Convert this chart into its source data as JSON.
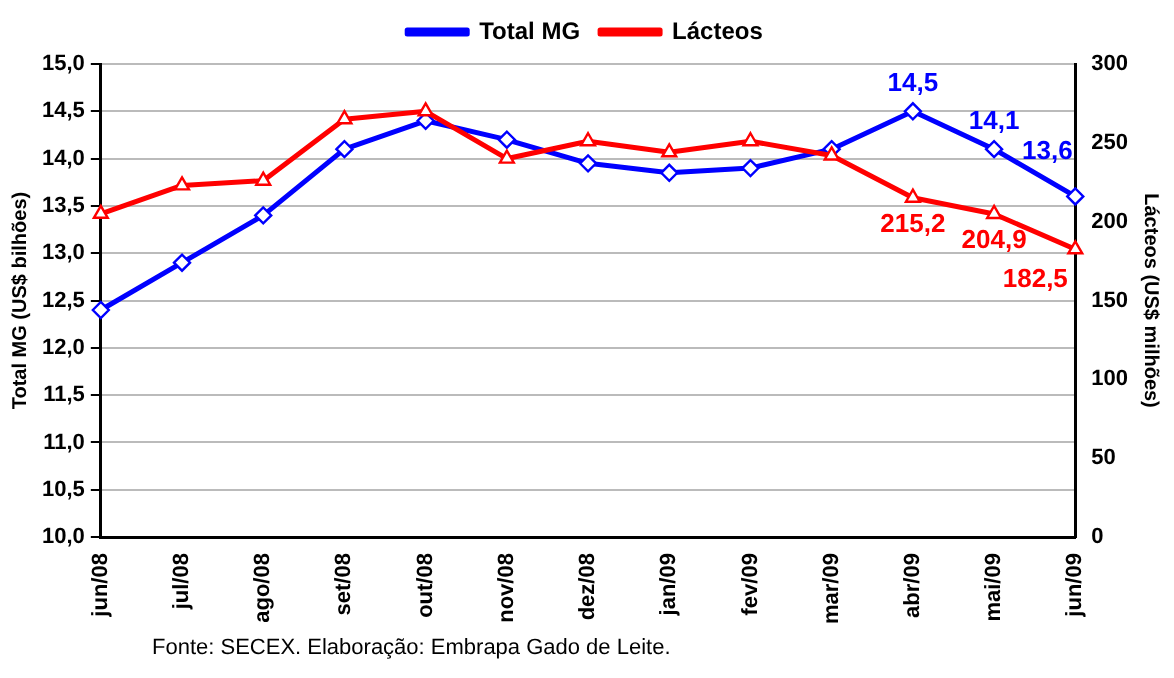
{
  "chart_data": {
    "type": "line",
    "categories": [
      "jun/08",
      "jul/08",
      "ago/08",
      "set/08",
      "out/08",
      "nov/08",
      "dez/08",
      "jan/09",
      "fev/09",
      "mar/09",
      "abr/09",
      "mai/09",
      "jun/09"
    ],
    "series": [
      {
        "name": "Total MG",
        "color": "#0000ff",
        "marker": "diamond",
        "values": [
          12.4,
          12.9,
          13.4,
          14.1,
          14.4,
          14.2,
          13.95,
          13.85,
          13.9,
          14.1,
          14.5,
          14.1,
          13.6
        ],
        "value_labels": [
          null,
          null,
          null,
          null,
          null,
          null,
          null,
          null,
          null,
          null,
          "14,5",
          "14,1",
          "13,6"
        ]
      },
      {
        "name": "Lácteos",
        "color": "#ff0000",
        "marker": "triangle",
        "axis": "y2",
        "values": [
          205,
          223,
          226,
          265,
          270,
          240,
          251,
          244,
          251,
          242,
          215.2,
          204.9,
          182.5
        ],
        "value_labels": [
          null,
          null,
          null,
          null,
          null,
          null,
          null,
          null,
          null,
          null,
          "215,2",
          "204,9",
          "182,5"
        ]
      }
    ],
    "ylabel": "Total MG (US$ bilhões)",
    "y2label": "Lácteos (US$ milhões)",
    "ylim": [
      10,
      15
    ],
    "yticks": [
      {
        "value": 10,
        "label": "10,0"
      },
      {
        "value": 10.5,
        "label": "10,5"
      },
      {
        "value": 11,
        "label": "11,0"
      },
      {
        "value": 11.5,
        "label": "11,5"
      },
      {
        "value": 12,
        "label": "12,0"
      },
      {
        "value": 12.5,
        "label": "12,5"
      },
      {
        "value": 13,
        "label": "13,0"
      },
      {
        "value": 13.5,
        "label": "13,5"
      },
      {
        "value": 14,
        "label": "14,0"
      },
      {
        "value": 14.5,
        "label": "14,5"
      },
      {
        "value": 15,
        "label": "15,0"
      }
    ],
    "y2lim": [
      0,
      300
    ],
    "y2ticks": [
      0,
      50,
      100,
      150,
      200,
      250,
      300
    ],
    "grid": "y",
    "legend": "top",
    "annotations": [
      "Fonte: SECEX. Elaboração: Embrapa Gado de Leite."
    ]
  }
}
